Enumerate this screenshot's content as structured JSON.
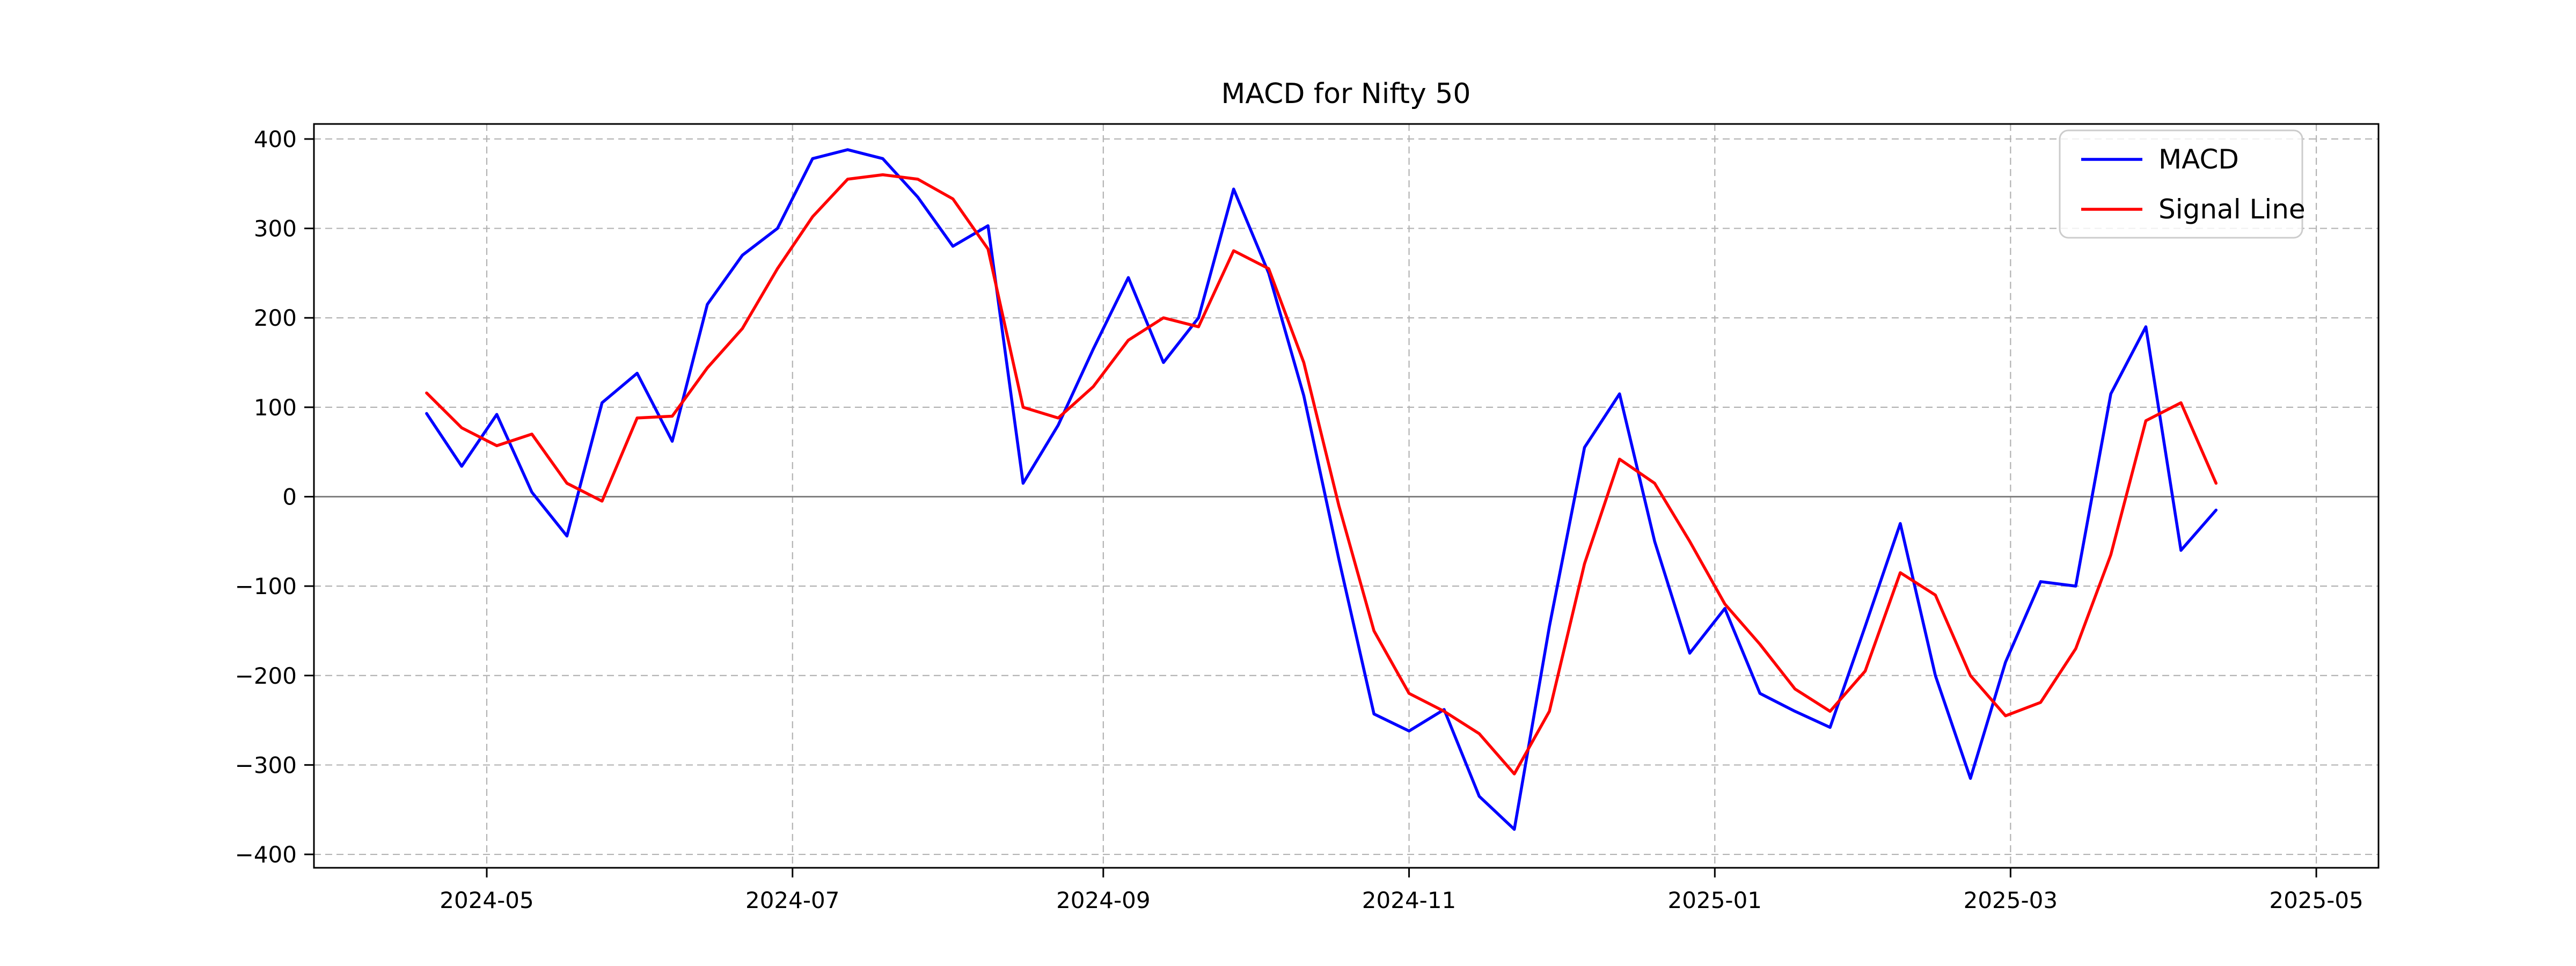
{
  "chart_data": {
    "type": "line",
    "title": "MACD for Nifty 50",
    "xlabel": "",
    "ylabel": "",
    "grid": true,
    "grid_style": "dashed",
    "zero_line": true,
    "zero_line_color": "#808080",
    "background_color": "#ffffff",
    "ylim": [
      -400,
      400
    ],
    "yticks": [
      400,
      300,
      200,
      100,
      0,
      -100,
      -200,
      -300,
      -400
    ],
    "xticks": [
      {
        "date": "2024-05-01",
        "label": "2024-05"
      },
      {
        "date": "2024-07-01",
        "label": "2024-07"
      },
      {
        "date": "2024-09-01",
        "label": "2024-09"
      },
      {
        "date": "2024-11-01",
        "label": "2024-11"
      },
      {
        "date": "2025-01-01",
        "label": "2025-01"
      },
      {
        "date": "2025-03-01",
        "label": "2025-03"
      },
      {
        "date": "2025-05-01",
        "label": "2025-05"
      }
    ],
    "legend": {
      "position": "upper right",
      "entries": [
        "MACD",
        "Signal Line"
      ]
    },
    "x": [
      "2024-04-19",
      "2024-04-26",
      "2024-05-03",
      "2024-05-10",
      "2024-05-17",
      "2024-05-24",
      "2024-05-31",
      "2024-06-07",
      "2024-06-14",
      "2024-06-21",
      "2024-06-28",
      "2024-07-05",
      "2024-07-12",
      "2024-07-19",
      "2024-07-26",
      "2024-08-02",
      "2024-08-09",
      "2024-08-16",
      "2024-08-23",
      "2024-08-30",
      "2024-09-06",
      "2024-09-13",
      "2024-09-20",
      "2024-09-27",
      "2024-10-04",
      "2024-10-11",
      "2024-10-18",
      "2024-10-25",
      "2024-11-01",
      "2024-11-08",
      "2024-11-15",
      "2024-11-22",
      "2024-11-29",
      "2024-12-06",
      "2024-12-13",
      "2024-12-20",
      "2024-12-27",
      "2025-01-03",
      "2025-01-10",
      "2025-01-17",
      "2025-01-24",
      "2025-01-31",
      "2025-02-07",
      "2025-02-14",
      "2025-02-21",
      "2025-02-28",
      "2025-03-07",
      "2025-03-14",
      "2025-03-21",
      "2025-03-28",
      "2025-04-04",
      "2025-04-11"
    ],
    "series": [
      {
        "name": "MACD",
        "color": "#0000ff",
        "values": [
          93,
          34,
          92,
          5,
          -44,
          105,
          138,
          62,
          215,
          270,
          300,
          378,
          388,
          378,
          335,
          280,
          303,
          15,
          80,
          165,
          245,
          150,
          200,
          344,
          250,
          113,
          -70,
          -243,
          -262,
          -238,
          -335,
          -372,
          -145,
          55,
          115,
          -50,
          -175,
          -125,
          -220,
          -240,
          -258,
          -145,
          -30,
          -200,
          -315,
          -185,
          -95,
          -100,
          115,
          190,
          -60,
          -15
        ]
      },
      {
        "name": "Signal Line",
        "color": "#ff0000",
        "values": [
          116,
          77,
          57,
          70,
          15,
          -5,
          88,
          90,
          144,
          188,
          255,
          313,
          355,
          360,
          355,
          333,
          277,
          100,
          88,
          123,
          175,
          200,
          190,
          275,
          255,
          150,
          -10,
          -150,
          -220,
          -240,
          -265,
          -310,
          -240,
          -75,
          42,
          15,
          -50,
          -120,
          -165,
          -215,
          -240,
          -195,
          -85,
          -110,
          -200,
          -245,
          -230,
          -170,
          -65,
          85,
          105,
          15
        ]
      }
    ]
  },
  "style": {
    "grid_color": "#b3b3b3",
    "spine_color": "#000000",
    "tick_color": "#000000",
    "line_width": 5.5
  }
}
